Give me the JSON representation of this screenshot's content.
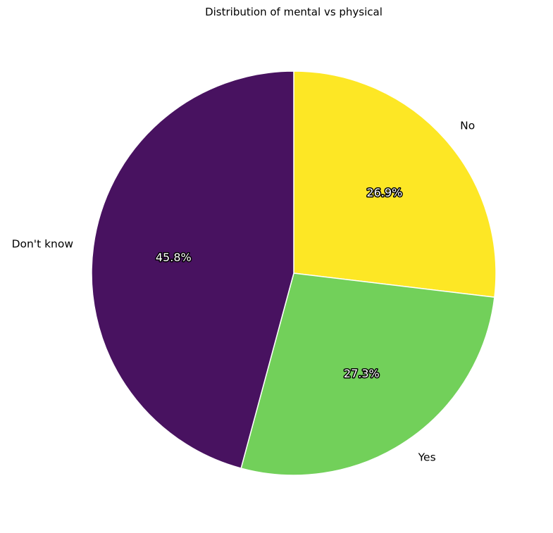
{
  "chart_data": {
    "type": "pie",
    "title": "Distribution of mental vs physical",
    "slices": [
      {
        "label": "No",
        "value": 26.9,
        "pct_label": "26.9%",
        "color": "#fde725"
      },
      {
        "label": "Yes",
        "value": 27.3,
        "pct_label": "27.3%",
        "color": "#72d05a"
      },
      {
        "label": "Don't know",
        "value": 45.8,
        "pct_label": "45.8%",
        "color": "#481260"
      }
    ],
    "start_angle": "top",
    "direction": "clockwise",
    "slice_edge_color": "#ffffff",
    "percentage_labels": "inside",
    "legend": "none"
  }
}
